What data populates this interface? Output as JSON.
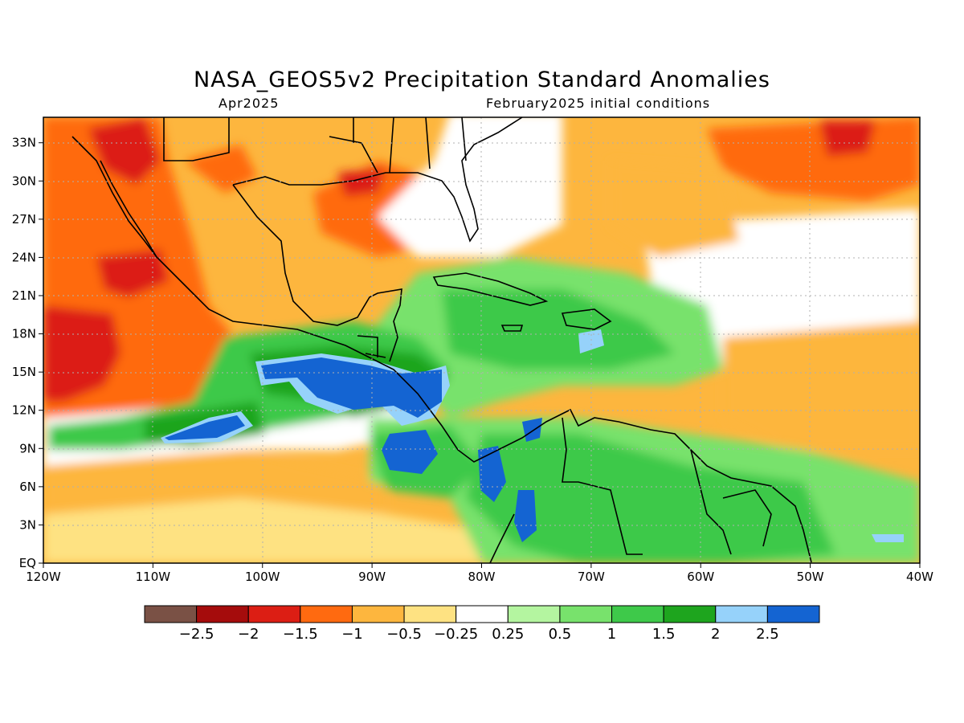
{
  "title": "NASA_GEOS5v2 Precipitation Standard Anomalies",
  "subtitle_left": "Apr2025",
  "subtitle_right": "February2025 initial conditions",
  "axes": {
    "lon_labels": [
      "120W",
      "110W",
      "100W",
      "90W",
      "80W",
      "70W",
      "60W",
      "50W",
      "40W"
    ],
    "lat_labels": [
      "EQ",
      "3N",
      "6N",
      "9N",
      "12N",
      "15N",
      "18N",
      "21N",
      "24N",
      "27N",
      "30N",
      "33N"
    ],
    "lon_range": [
      -120,
      -40
    ],
    "lat_range": [
      0,
      35
    ]
  },
  "colorbar": {
    "labels": [
      "−2.5",
      "−2",
      "−1.5",
      "−1",
      "−0.5",
      "−0.25",
      "0.25",
      "0.5",
      "1",
      "1.5",
      "2",
      "2.5"
    ],
    "colors": [
      "#7a5145",
      "#a50c0c",
      "#dc1e14",
      "#ff6a10",
      "#fdb63e",
      "#fee282",
      "#ffffff",
      "#b4f5a0",
      "#78e26c",
      "#3ec94a",
      "#1ea51e",
      "#96d2fa",
      "#1464d2"
    ]
  }
}
